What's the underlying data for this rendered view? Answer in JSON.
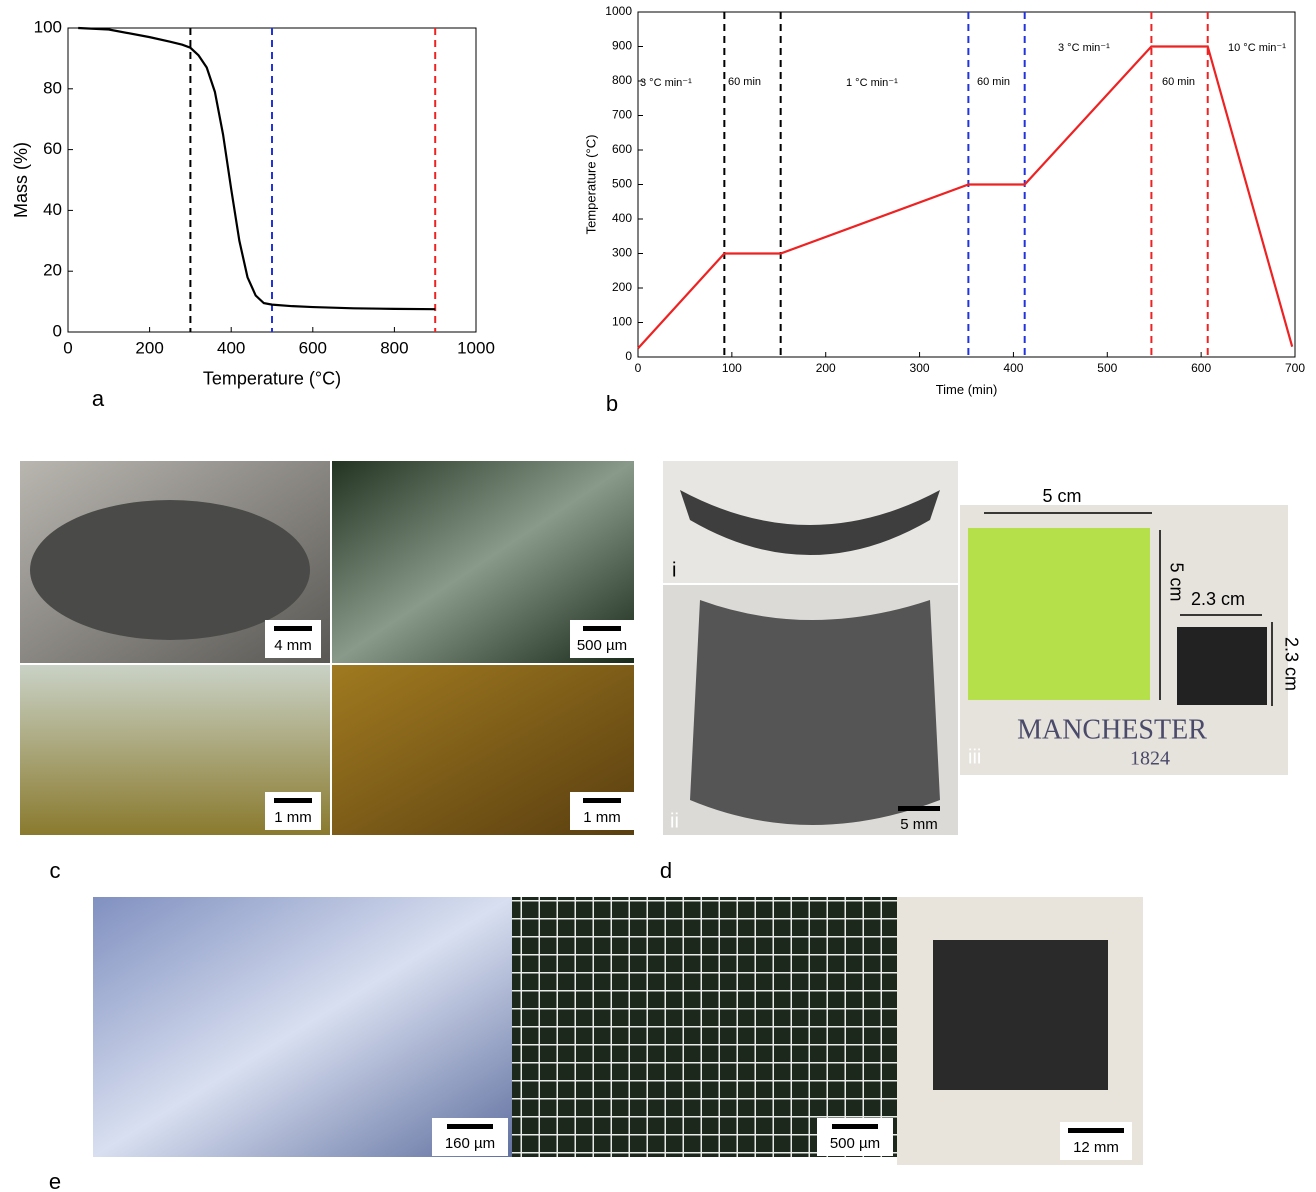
{
  "chart_data": [
    {
      "type": "line",
      "xlabel": "Temperature (°C)",
      "ylabel": "Mass (%)",
      "panel": "a",
      "xlim": [
        0,
        1000
      ],
      "xticks": [
        0,
        200,
        400,
        600,
        800,
        1000
      ],
      "ylim": [
        0,
        100
      ],
      "yticks": [
        0,
        20,
        40,
        60,
        80,
        100
      ],
      "series": [
        {
          "color": "#000000",
          "x": [
            25,
            100,
            200,
            250,
            280,
            300,
            320,
            340,
            360,
            380,
            400,
            420,
            440,
            460,
            480,
            500,
            550,
            600,
            700,
            800,
            900
          ],
          "values": [
            100,
            99.5,
            97,
            95.5,
            94.5,
            93.5,
            91,
            87,
            79,
            65,
            47,
            30,
            18,
            12,
            9.5,
            9,
            8.5,
            8.2,
            7.8,
            7.6,
            7.5
          ]
        }
      ],
      "vlines": [
        {
          "x": 300,
          "color": "#000000"
        },
        {
          "x": 500,
          "color": "#2233dd"
        },
        {
          "x": 900,
          "color": "#ee2222"
        }
      ]
    },
    {
      "type": "line",
      "xlabel": "Time (min)",
      "ylabel": "Temperature (°C)",
      "panel": "b",
      "xlim": [
        0,
        700
      ],
      "xticks": [
        0,
        100,
        200,
        300,
        400,
        500,
        600,
        700
      ],
      "ylim": [
        0,
        1000
      ],
      "yticks": [
        0,
        100,
        200,
        300,
        400,
        500,
        600,
        700,
        800,
        900,
        1000
      ],
      "series": [
        {
          "color": "#ee2222",
          "x": [
            0,
            92,
            152,
            352,
            412,
            547,
            607,
            697
          ],
          "values": [
            25,
            300,
            300,
            500,
            500,
            900,
            900,
            30
          ]
        }
      ],
      "vlines": [
        {
          "x": 92,
          "color": "#000000"
        },
        {
          "x": 152,
          "color": "#000000"
        },
        {
          "x": 352,
          "color": "#2233dd"
        },
        {
          "x": 412,
          "color": "#2233dd"
        },
        {
          "x": 547,
          "color": "#ee2222"
        },
        {
          "x": 607,
          "color": "#ee2222"
        }
      ],
      "annotations": [
        "3 °C min⁻¹",
        "60 min",
        "1 °C min⁻¹",
        "60 min",
        "3 °C min⁻¹",
        "60 min",
        "10 °C min⁻¹"
      ]
    }
  ],
  "panels": {
    "c": {
      "label": "c",
      "scale_bars": [
        "4 mm",
        "500 µm",
        "1 mm",
        "1 mm"
      ]
    },
    "d": {
      "label": "d",
      "sub_labels": [
        "i",
        "ii",
        "iii"
      ],
      "scale_bar": "5 mm",
      "dimensions": [
        "5 cm",
        "5 cm",
        "2.3 cm",
        "2.3 cm"
      ],
      "photo_text": [
        "MANCHESTER",
        "1824"
      ]
    },
    "e": {
      "label": "e",
      "scale_bars": [
        "160 µm",
        "500 µm",
        "12 mm"
      ]
    }
  }
}
